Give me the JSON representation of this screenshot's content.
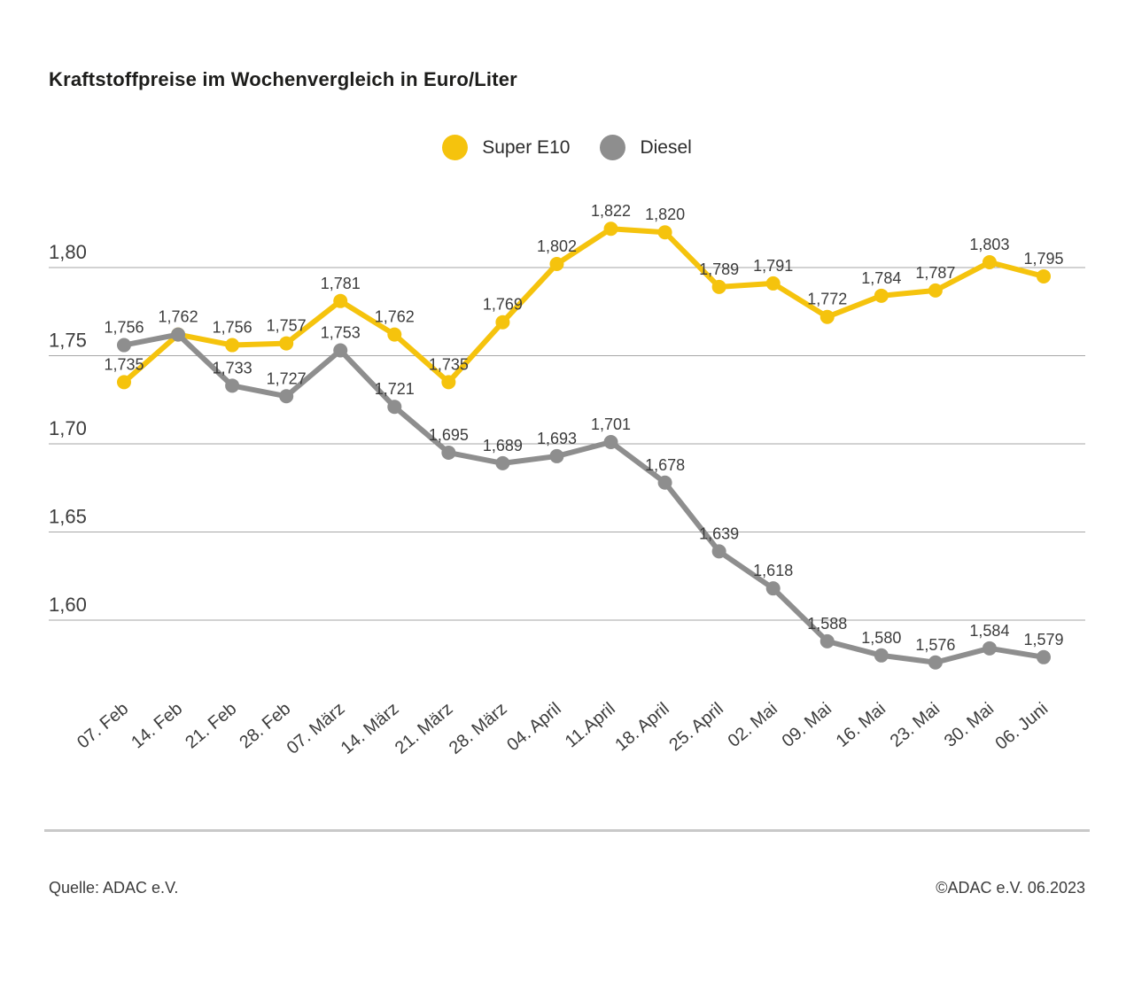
{
  "header": {
    "title": "Kraftstoffpreise im Wochenvergleich in Euro/Liter"
  },
  "legend": {
    "items": [
      {
        "label": "Super E10",
        "color": "#F5C30D"
      },
      {
        "label": "Diesel",
        "color": "#8E8E8E"
      }
    ]
  },
  "chart_data": {
    "type": "line",
    "title": "Kraftstoffpreise im Wochenvergleich in Euro/Liter",
    "unit": "Euro/Liter",
    "grid": true,
    "legend_position": "top-center",
    "categories": [
      "07. Feb",
      "14. Feb",
      "21. Feb",
      "28. Feb",
      "07. März",
      "14. März",
      "21. März",
      "28. März",
      "04. April",
      "11.April",
      "18. April",
      "25. April",
      "02. Mai",
      "09. Mai",
      "16. Mai",
      "23. Mai",
      "30. Mai",
      "06. Juni"
    ],
    "series": [
      {
        "name": "Super E10",
        "color": "#F5C30D",
        "values": [
          1.735,
          1.762,
          1.756,
          1.757,
          1.781,
          1.762,
          1.735,
          1.769,
          1.802,
          1.822,
          1.82,
          1.789,
          1.791,
          1.772,
          1.784,
          1.787,
          1.803,
          1.795
        ],
        "point_labels": [
          "1,735",
          null,
          "1,756",
          "1,757",
          "1,781",
          "1,762",
          "1,735",
          "1,769",
          "1,802",
          "1,822",
          "1,820",
          "1,789",
          "1,791",
          "1,772",
          "1,784",
          "1,787",
          "1,803",
          "1,795"
        ]
      },
      {
        "name": "Diesel",
        "color": "#8E8E8E",
        "values": [
          1.756,
          1.762,
          1.733,
          1.727,
          1.753,
          1.721,
          1.695,
          1.689,
          1.693,
          1.701,
          1.678,
          1.639,
          1.618,
          1.588,
          1.58,
          1.576,
          1.584,
          1.579
        ],
        "point_labels": [
          "1,756",
          "1,762",
          "1,733",
          "1,727",
          "1,753",
          "1,721",
          "1,695",
          "1,689",
          "1,693",
          "1,701",
          "1,678",
          "1,639",
          "1,618",
          "1,588",
          "1,580",
          "1,576",
          "1,584",
          "1,579"
        ]
      }
    ],
    "yticks": {
      "values": [
        1.8,
        1.75,
        1.7,
        1.65,
        1.6
      ],
      "labels": [
        "1,80",
        "1,75",
        "1,70",
        "1,65",
        "1,60"
      ]
    },
    "ylim": [
      1.555,
      1.81
    ],
    "ylabel": "",
    "xlabel": ""
  },
  "footer": {
    "source": "Quelle: ADAC e.V.",
    "copyright": "©ADAC e.V. 06.2023"
  }
}
